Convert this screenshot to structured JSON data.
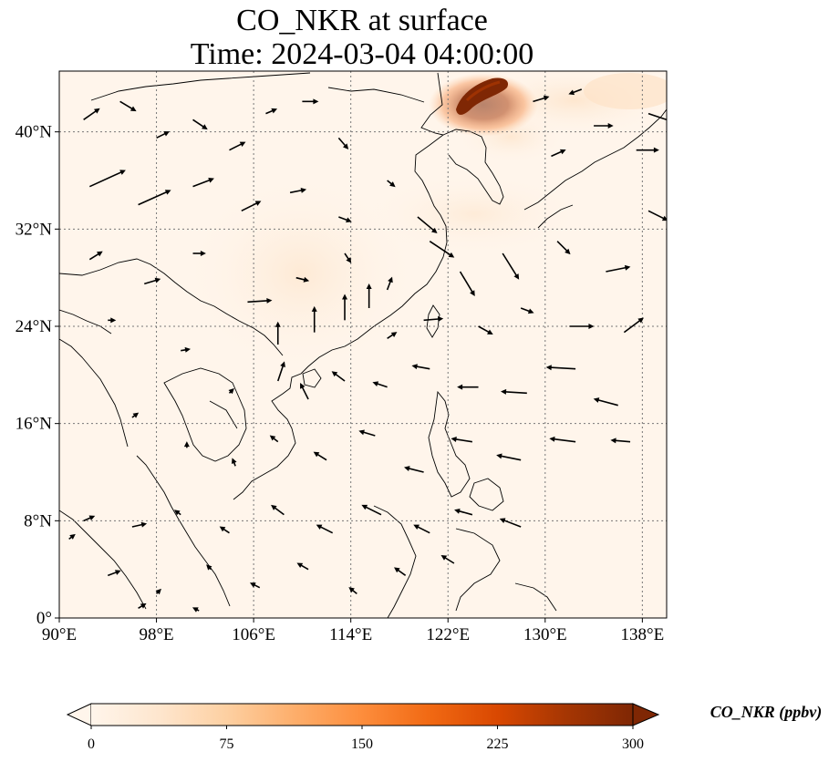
{
  "figure": {
    "title_line1": "CO_NKR at surface",
    "title_line2": "Time: 2024-03-04 04:00:00"
  },
  "map": {
    "lon_range": [
      90,
      140
    ],
    "lat_range": [
      0,
      45
    ],
    "x_ticks": [
      {
        "value": 90,
        "label": "90°E"
      },
      {
        "value": 98,
        "label": "98°E"
      },
      {
        "value": 106,
        "label": "106°E"
      },
      {
        "value": 114,
        "label": "114°E"
      },
      {
        "value": 122,
        "label": "122°E"
      },
      {
        "value": 130,
        "label": "130°E"
      },
      {
        "value": 138,
        "label": "138°E"
      }
    ],
    "y_ticks": [
      {
        "value": 0,
        "label": "0°"
      },
      {
        "value": 8,
        "label": "8°N"
      },
      {
        "value": 16,
        "label": "16°N"
      },
      {
        "value": 24,
        "label": "24°N"
      },
      {
        "value": 32,
        "label": "32°N"
      },
      {
        "value": 40,
        "label": "40°N"
      }
    ],
    "gridlines": true,
    "background_color": "#fff5eb",
    "coastline_color": "#000000",
    "hotspot": {
      "lon": 125.2,
      "lat": 43.0,
      "value_ppbv": 300
    },
    "wind_vectors": [
      {
        "lon": 92.0,
        "lat": 41.0,
        "u": 1.0,
        "v": 0.7
      },
      {
        "lon": 95.0,
        "lat": 42.5,
        "u": 1.0,
        "v": -0.6
      },
      {
        "lon": 98.0,
        "lat": 39.5,
        "u": 0.8,
        "v": 0.4
      },
      {
        "lon": 101.0,
        "lat": 41.0,
        "u": 0.9,
        "v": -0.6
      },
      {
        "lon": 104.0,
        "lat": 38.5,
        "u": 1.0,
        "v": 0.5
      },
      {
        "lon": 107.0,
        "lat": 41.5,
        "u": 0.7,
        "v": 0.3
      },
      {
        "lon": 110.0,
        "lat": 42.5,
        "u": 1.0,
        "v": 0.0
      },
      {
        "lon": 113.0,
        "lat": 39.5,
        "u": 0.6,
        "v": -0.7
      },
      {
        "lon": 92.5,
        "lat": 35.5,
        "u": 2.2,
        "v": 1.0
      },
      {
        "lon": 96.5,
        "lat": 34.0,
        "u": 2.0,
        "v": 0.9
      },
      {
        "lon": 101.0,
        "lat": 35.5,
        "u": 1.3,
        "v": 0.5
      },
      {
        "lon": 105.0,
        "lat": 33.5,
        "u": 1.2,
        "v": 0.6
      },
      {
        "lon": 109.0,
        "lat": 35.0,
        "u": 1.0,
        "v": 0.2
      },
      {
        "lon": 113.0,
        "lat": 33.0,
        "u": 0.8,
        "v": -0.3
      },
      {
        "lon": 117.0,
        "lat": 36.0,
        "u": 0.5,
        "v": -0.4
      },
      {
        "lon": 119.5,
        "lat": 33.0,
        "u": 1.2,
        "v": -1.0
      },
      {
        "lon": 92.5,
        "lat": 29.5,
        "u": 0.8,
        "v": 0.5
      },
      {
        "lon": 97.0,
        "lat": 27.5,
        "u": 1.0,
        "v": 0.3
      },
      {
        "lon": 101.0,
        "lat": 30.0,
        "u": 0.8,
        "v": 0.0
      },
      {
        "lon": 105.5,
        "lat": 26.0,
        "u": 1.5,
        "v": 0.1
      },
      {
        "lon": 109.5,
        "lat": 28.0,
        "u": 0.8,
        "v": -0.2
      },
      {
        "lon": 113.5,
        "lat": 30.0,
        "u": 0.4,
        "v": -0.6
      },
      {
        "lon": 117.0,
        "lat": 27.0,
        "u": 0.3,
        "v": 0.8
      },
      {
        "lon": 120.5,
        "lat": 31.0,
        "u": 1.5,
        "v": -1.0
      },
      {
        "lon": 123.0,
        "lat": 28.5,
        "u": 0.9,
        "v": -1.5
      },
      {
        "lon": 126.5,
        "lat": 30.0,
        "u": 1.0,
        "v": -1.6
      },
      {
        "lon": 131.0,
        "lat": 31.0,
        "u": 0.8,
        "v": -0.8
      },
      {
        "lon": 135.0,
        "lat": 28.5,
        "u": 1.5,
        "v": 0.3
      },
      {
        "lon": 138.5,
        "lat": 33.5,
        "u": 1.2,
        "v": -0.6
      },
      {
        "lon": 108.0,
        "lat": 22.5,
        "u": 0.0,
        "v": 1.4
      },
      {
        "lon": 111.0,
        "lat": 23.5,
        "u": 0.0,
        "v": 1.6
      },
      {
        "lon": 113.5,
        "lat": 24.5,
        "u": 0.0,
        "v": 1.6
      },
      {
        "lon": 115.5,
        "lat": 25.5,
        "u": 0.0,
        "v": 1.5
      },
      {
        "lon": 117.0,
        "lat": 23.0,
        "u": 0.6,
        "v": 0.4
      },
      {
        "lon": 120.0,
        "lat": 24.5,
        "u": 1.2,
        "v": 0.1
      },
      {
        "lon": 124.5,
        "lat": 24.0,
        "u": 0.9,
        "v": -0.5
      },
      {
        "lon": 128.0,
        "lat": 25.5,
        "u": 0.8,
        "v": -0.3
      },
      {
        "lon": 132.0,
        "lat": 24.0,
        "u": 1.5,
        "v": 0.0
      },
      {
        "lon": 136.5,
        "lat": 23.5,
        "u": 1.2,
        "v": 0.9
      },
      {
        "lon": 94.0,
        "lat": 24.5,
        "u": 0.5,
        "v": 0.0
      },
      {
        "lon": 100.0,
        "lat": 22.0,
        "u": 0.6,
        "v": 0.1
      },
      {
        "lon": 104.0,
        "lat": 18.5,
        "u": 0.3,
        "v": 0.3
      },
      {
        "lon": 108.0,
        "lat": 19.5,
        "u": 0.4,
        "v": 1.2
      },
      {
        "lon": 110.5,
        "lat": 18.0,
        "u": -0.5,
        "v": 1.0
      },
      {
        "lon": 113.5,
        "lat": 19.5,
        "u": -0.8,
        "v": 0.6
      },
      {
        "lon": 117.0,
        "lat": 19.0,
        "u": -0.9,
        "v": 0.3
      },
      {
        "lon": 120.5,
        "lat": 20.5,
        "u": -1.1,
        "v": 0.2
      },
      {
        "lon": 124.5,
        "lat": 19.0,
        "u": -1.3,
        "v": 0.0
      },
      {
        "lon": 128.5,
        "lat": 18.5,
        "u": -1.6,
        "v": 0.1
      },
      {
        "lon": 132.5,
        "lat": 20.5,
        "u": -1.8,
        "v": 0.1
      },
      {
        "lon": 136.0,
        "lat": 17.5,
        "u": -1.5,
        "v": 0.4
      },
      {
        "lon": 96.0,
        "lat": 16.5,
        "u": 0.4,
        "v": 0.3
      },
      {
        "lon": 100.5,
        "lat": 14.0,
        "u": 0.0,
        "v": 0.4
      },
      {
        "lon": 104.5,
        "lat": 12.5,
        "u": -0.2,
        "v": 0.5
      },
      {
        "lon": 108.0,
        "lat": 14.5,
        "u": -0.5,
        "v": 0.4
      },
      {
        "lon": 112.0,
        "lat": 13.0,
        "u": -0.8,
        "v": 0.5
      },
      {
        "lon": 116.0,
        "lat": 15.0,
        "u": -1.0,
        "v": 0.3
      },
      {
        "lon": 120.0,
        "lat": 12.0,
        "u": -1.2,
        "v": 0.3
      },
      {
        "lon": 124.0,
        "lat": 14.5,
        "u": -1.3,
        "v": 0.2
      },
      {
        "lon": 128.0,
        "lat": 13.0,
        "u": -1.5,
        "v": 0.3
      },
      {
        "lon": 132.5,
        "lat": 14.5,
        "u": -1.6,
        "v": 0.2
      },
      {
        "lon": 137.0,
        "lat": 14.5,
        "u": -1.2,
        "v": 0.1
      },
      {
        "lon": 92.0,
        "lat": 8.0,
        "u": 0.7,
        "v": 0.3
      },
      {
        "lon": 96.0,
        "lat": 7.5,
        "u": 0.9,
        "v": 0.2
      },
      {
        "lon": 100.0,
        "lat": 8.5,
        "u": -0.4,
        "v": 0.3
      },
      {
        "lon": 104.0,
        "lat": 7.0,
        "u": -0.6,
        "v": 0.4
      },
      {
        "lon": 108.5,
        "lat": 8.5,
        "u": -0.8,
        "v": 0.6
      },
      {
        "lon": 112.5,
        "lat": 7.0,
        "u": -1.0,
        "v": 0.5
      },
      {
        "lon": 116.5,
        "lat": 8.5,
        "u": -1.2,
        "v": 0.6
      },
      {
        "lon": 120.5,
        "lat": 7.0,
        "u": -1.0,
        "v": 0.5
      },
      {
        "lon": 124.0,
        "lat": 8.5,
        "u": -1.1,
        "v": 0.3
      },
      {
        "lon": 128.0,
        "lat": 7.5,
        "u": -1.3,
        "v": 0.5
      },
      {
        "lon": 90.8,
        "lat": 6.5,
        "u": 0.4,
        "v": 0.3
      },
      {
        "lon": 94.0,
        "lat": 3.5,
        "u": 0.8,
        "v": 0.3
      },
      {
        "lon": 98.0,
        "lat": 2.0,
        "u": 0.3,
        "v": 0.3
      },
      {
        "lon": 102.5,
        "lat": 4.0,
        "u": -0.3,
        "v": 0.3
      },
      {
        "lon": 106.5,
        "lat": 2.5,
        "u": -0.6,
        "v": 0.3
      },
      {
        "lon": 110.5,
        "lat": 4.0,
        "u": -0.7,
        "v": 0.4
      },
      {
        "lon": 114.5,
        "lat": 2.0,
        "u": -0.5,
        "v": 0.4
      },
      {
        "lon": 118.5,
        "lat": 3.5,
        "u": -0.7,
        "v": 0.5
      },
      {
        "lon": 122.5,
        "lat": 4.5,
        "u": -0.8,
        "v": 0.5
      },
      {
        "lon": 96.5,
        "lat": 0.8,
        "u": 0.5,
        "v": 0.3
      },
      {
        "lon": 101.5,
        "lat": 0.6,
        "u": -0.4,
        "v": 0.2
      },
      {
        "lon": 130.5,
        "lat": 38.0,
        "u": 0.9,
        "v": 0.4
      },
      {
        "lon": 134.0,
        "lat": 40.5,
        "u": 1.2,
        "v": 0.0
      },
      {
        "lon": 137.5,
        "lat": 38.5,
        "u": 1.4,
        "v": 0.0
      },
      {
        "lon": 138.5,
        "lat": 41.5,
        "u": 1.5,
        "v": -0.5
      },
      {
        "lon": 129.0,
        "lat": 42.5,
        "u": 1.0,
        "v": 0.3
      },
      {
        "lon": 133.0,
        "lat": 43.5,
        "u": -0.8,
        "v": -0.3
      }
    ]
  },
  "colorbar": {
    "label": "CO_NKR (ppbv)",
    "min": 0,
    "max": 300,
    "extend": "both",
    "ticks": [
      {
        "value": 0,
        "label": "0"
      },
      {
        "value": 75,
        "label": "75"
      },
      {
        "value": 150,
        "label": "150"
      },
      {
        "value": 225,
        "label": "225"
      },
      {
        "value": 300,
        "label": "300"
      }
    ],
    "colors": [
      "#fff5eb",
      "#fee6ce",
      "#fdd0a2",
      "#fdae6b",
      "#fd8d3c",
      "#f16913",
      "#d94801",
      "#a63603",
      "#7f2704"
    ]
  }
}
